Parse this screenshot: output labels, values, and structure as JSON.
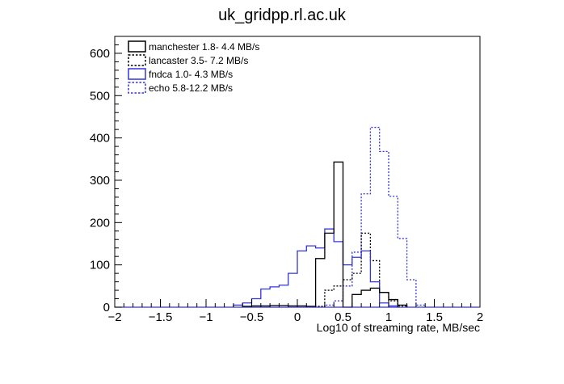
{
  "chart_data": {
    "type": "histogram",
    "title": "uk_gridpp.rl.ac.uk",
    "xlabel": "Log10  of streaming rate, MB/sec",
    "ylabel": "",
    "xlim": [
      -2,
      2
    ],
    "ylim": [
      0,
      640
    ],
    "bin_width": 0.1,
    "x_ticks": [
      -2,
      -1.5,
      -1,
      -0.5,
      0,
      0.5,
      1,
      1.5,
      2
    ],
    "x_tick_labels": [
      "−2",
      "−1.5",
      "−1",
      "−0.5",
      "0",
      "0.5",
      "1",
      "1.5",
      "2"
    ],
    "y_ticks": [
      0,
      100,
      200,
      300,
      400,
      500,
      600
    ],
    "y_tick_labels": [
      "0",
      "100",
      "200",
      "300",
      "400",
      "500",
      "600"
    ],
    "grid": false,
    "legend_position": "top-left",
    "series": [
      {
        "name": "manchester",
        "range_text": "1.8- 4.4 MB/s",
        "color": "#000000",
        "dashed": false,
        "bins": [
          {
            "x": -0.6,
            "y": 2
          },
          {
            "x": -0.5,
            "y": 3
          },
          {
            "x": -0.4,
            "y": 3
          },
          {
            "x": -0.3,
            "y": 4
          },
          {
            "x": -0.2,
            "y": 4
          },
          {
            "x": -0.1,
            "y": 3
          },
          {
            "x": 0.0,
            "y": 3
          },
          {
            "x": 0.1,
            "y": 2
          },
          {
            "x": 0.2,
            "y": 115
          },
          {
            "x": 0.3,
            "y": 175
          },
          {
            "x": 0.4,
            "y": 343
          },
          {
            "x": 0.5,
            "y": 0
          },
          {
            "x": 0.6,
            "y": 30
          },
          {
            "x": 0.7,
            "y": 40
          },
          {
            "x": 0.8,
            "y": 45
          },
          {
            "x": 0.9,
            "y": 35
          },
          {
            "x": 1.0,
            "y": 18
          },
          {
            "x": 1.1,
            "y": 5
          }
        ]
      },
      {
        "name": "lancaster",
        "range_text": "3.5- 7.2 MB/s",
        "color": "#000000",
        "dashed": true,
        "bins": [
          {
            "x": 0.2,
            "y": 2
          },
          {
            "x": 0.3,
            "y": 40
          },
          {
            "x": 0.4,
            "y": 50
          },
          {
            "x": 0.5,
            "y": 65
          },
          {
            "x": 0.6,
            "y": 80
          },
          {
            "x": 0.7,
            "y": 175
          },
          {
            "x": 0.8,
            "y": 110
          },
          {
            "x": 0.9,
            "y": 35
          },
          {
            "x": 1.0,
            "y": 15
          },
          {
            "x": 1.1,
            "y": 3
          }
        ]
      },
      {
        "name": "fndca",
        "range_text": "1.0- 4.3 MB/s",
        "color": "#3333dd",
        "dashed": false,
        "bins": [
          {
            "x": -0.7,
            "y": 5
          },
          {
            "x": -0.6,
            "y": 10
          },
          {
            "x": -0.5,
            "y": 20
          },
          {
            "x": -0.4,
            "y": 43
          },
          {
            "x": -0.3,
            "y": 48
          },
          {
            "x": -0.2,
            "y": 52
          },
          {
            "x": -0.1,
            "y": 80
          },
          {
            "x": 0.0,
            "y": 133
          },
          {
            "x": 0.1,
            "y": 145
          },
          {
            "x": 0.2,
            "y": 140
          },
          {
            "x": 0.3,
            "y": 185
          },
          {
            "x": 0.4,
            "y": 155
          },
          {
            "x": 0.5,
            "y": 100
          },
          {
            "x": 0.6,
            "y": 118
          },
          {
            "x": 0.7,
            "y": 133
          },
          {
            "x": 0.8,
            "y": 60
          },
          {
            "x": 0.9,
            "y": 10
          },
          {
            "x": 1.0,
            "y": 3
          }
        ]
      },
      {
        "name": "echo",
        "range_text": "5.8-12.2 MB/s",
        "color": "#3333dd",
        "dashed": true,
        "bins": [
          {
            "x": 0.3,
            "y": 5
          },
          {
            "x": 0.4,
            "y": 15
          },
          {
            "x": 0.5,
            "y": 50
          },
          {
            "x": 0.6,
            "y": 130
          },
          {
            "x": 0.7,
            "y": 268
          },
          {
            "x": 0.8,
            "y": 425
          },
          {
            "x": 0.9,
            "y": 368
          },
          {
            "x": 1.0,
            "y": 262
          },
          {
            "x": 1.1,
            "y": 162
          },
          {
            "x": 1.2,
            "y": 65
          },
          {
            "x": 1.3,
            "y": 5
          }
        ]
      }
    ]
  }
}
